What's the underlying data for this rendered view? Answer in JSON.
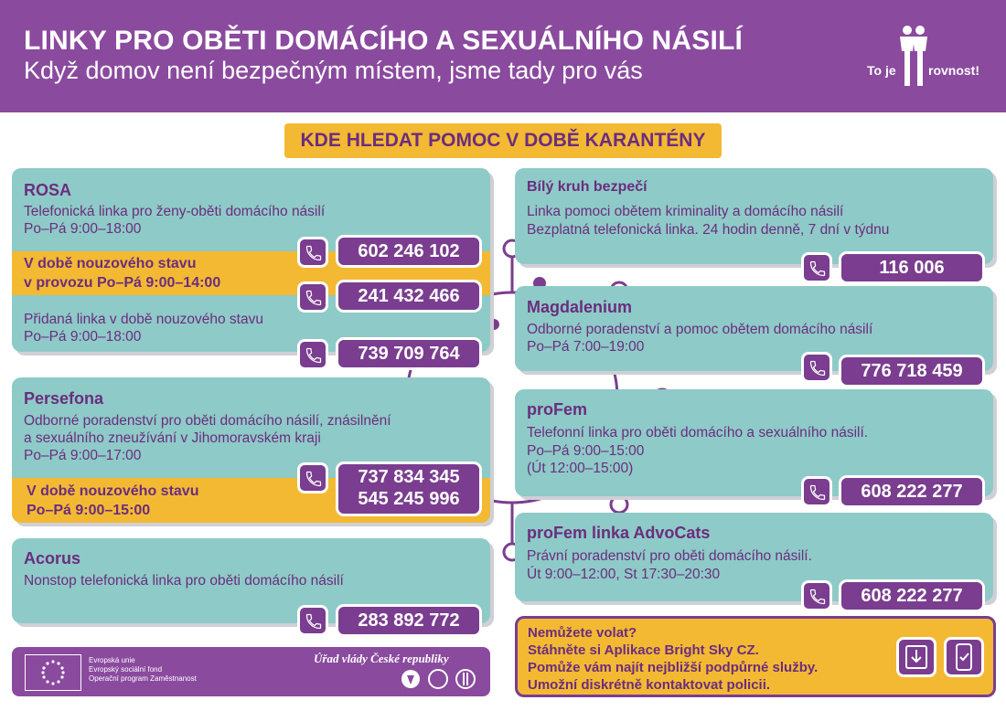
{
  "header": {
    "title": "LINKY PRO OBĚTI DOMÁCÍHO A SEXUÁLNÍHO NÁSILÍ",
    "subtitle": "Když domov není bezpečným místem, jsme tady pro vás",
    "logo_text_left": "To je",
    "logo_text_right": "rovnost!"
  },
  "banner": "KDE HLEDAT POMOC V DOBĚ KARANTÉNY",
  "colors": {
    "purple": "#8a4a9e",
    "dark_purple": "#7a3d8f",
    "teal": "#8ecac7",
    "yellow": "#f3b933"
  },
  "cards": {
    "rosa": {
      "name": "ROSA",
      "line1": "Telefonická linka pro ženy-oběti domácího násilí",
      "line2": "Po–Pá 9:00–18:00",
      "phone1": "602 246 102",
      "emergency1": "V době nouzového stavu",
      "emergency2": "v provozu Po–Pá 9:00–14:00",
      "phone2": "241 432 466",
      "line3": "Přidaná linka v době nouzového stavu",
      "line4": "Po–Pá 9:00–18:00",
      "phone3": "739 709 764"
    },
    "persefona": {
      "name": "Persefona",
      "line1": "Odborné poradenství pro oběti domácího násilí, znásilnění",
      "line2": "a sexuálního zneužívání v Jihomoravském kraji",
      "line3": "Po–Pá 9:00–17:00",
      "emergency1": "V době nouzového stavu",
      "emergency2": "Po–Pá 9:00–15:00",
      "phone1": "737 834 345",
      "phone2": "545 245 996"
    },
    "acorus": {
      "name": "Acorus",
      "line1": "Nonstop telefonická linka pro oběti domácího násilí",
      "phone": "283 892 772"
    },
    "bily_kruh": {
      "name": "Bílý kruh bezpečí",
      "line1": "Linka pomoci obětem kriminality a domácího násilí",
      "line2": "Bezplatná telefonická linka. 24 hodin denně, 7 dní v týdnu",
      "phone": "116 006"
    },
    "magdalenium": {
      "name": "Magdalenium",
      "line1": "Odborné poradenství a pomoc obětem domácího násilí",
      "line2": "Po–Pá 7:00–19:00",
      "phone": "776 718 459"
    },
    "profem": {
      "name": "proFem",
      "line1": "Telefonní linka pro oběti domácího a sexuálního násilí.",
      "line2": "Po–Pá 9:00–15:00",
      "line3": "(Út 12:00–15:00)",
      "phone": "608 222 277"
    },
    "advocats": {
      "name": "proFem linka AdvoCats",
      "line1": "Právní poradenství pro oběti domácího násilí.",
      "line2": "Út 9:00–12:00, St 17:30–20:30",
      "phone": "608 222 277"
    }
  },
  "footer_left": {
    "eu_line1": "Evropská unie",
    "eu_line2": "Evropský sociální fond",
    "eu_line3": "Operační program Zaměstnanost",
    "gov": "Úřad vlády České republiky"
  },
  "footer_right": {
    "line1": "Nemůžete volat?",
    "line2": "Stáhněte si Aplikace Bright Sky CZ.",
    "line3": "Pomůže vám najít nejbližší podpůrné služby.",
    "line4": "Umožní diskrétně kontaktovat policii."
  }
}
